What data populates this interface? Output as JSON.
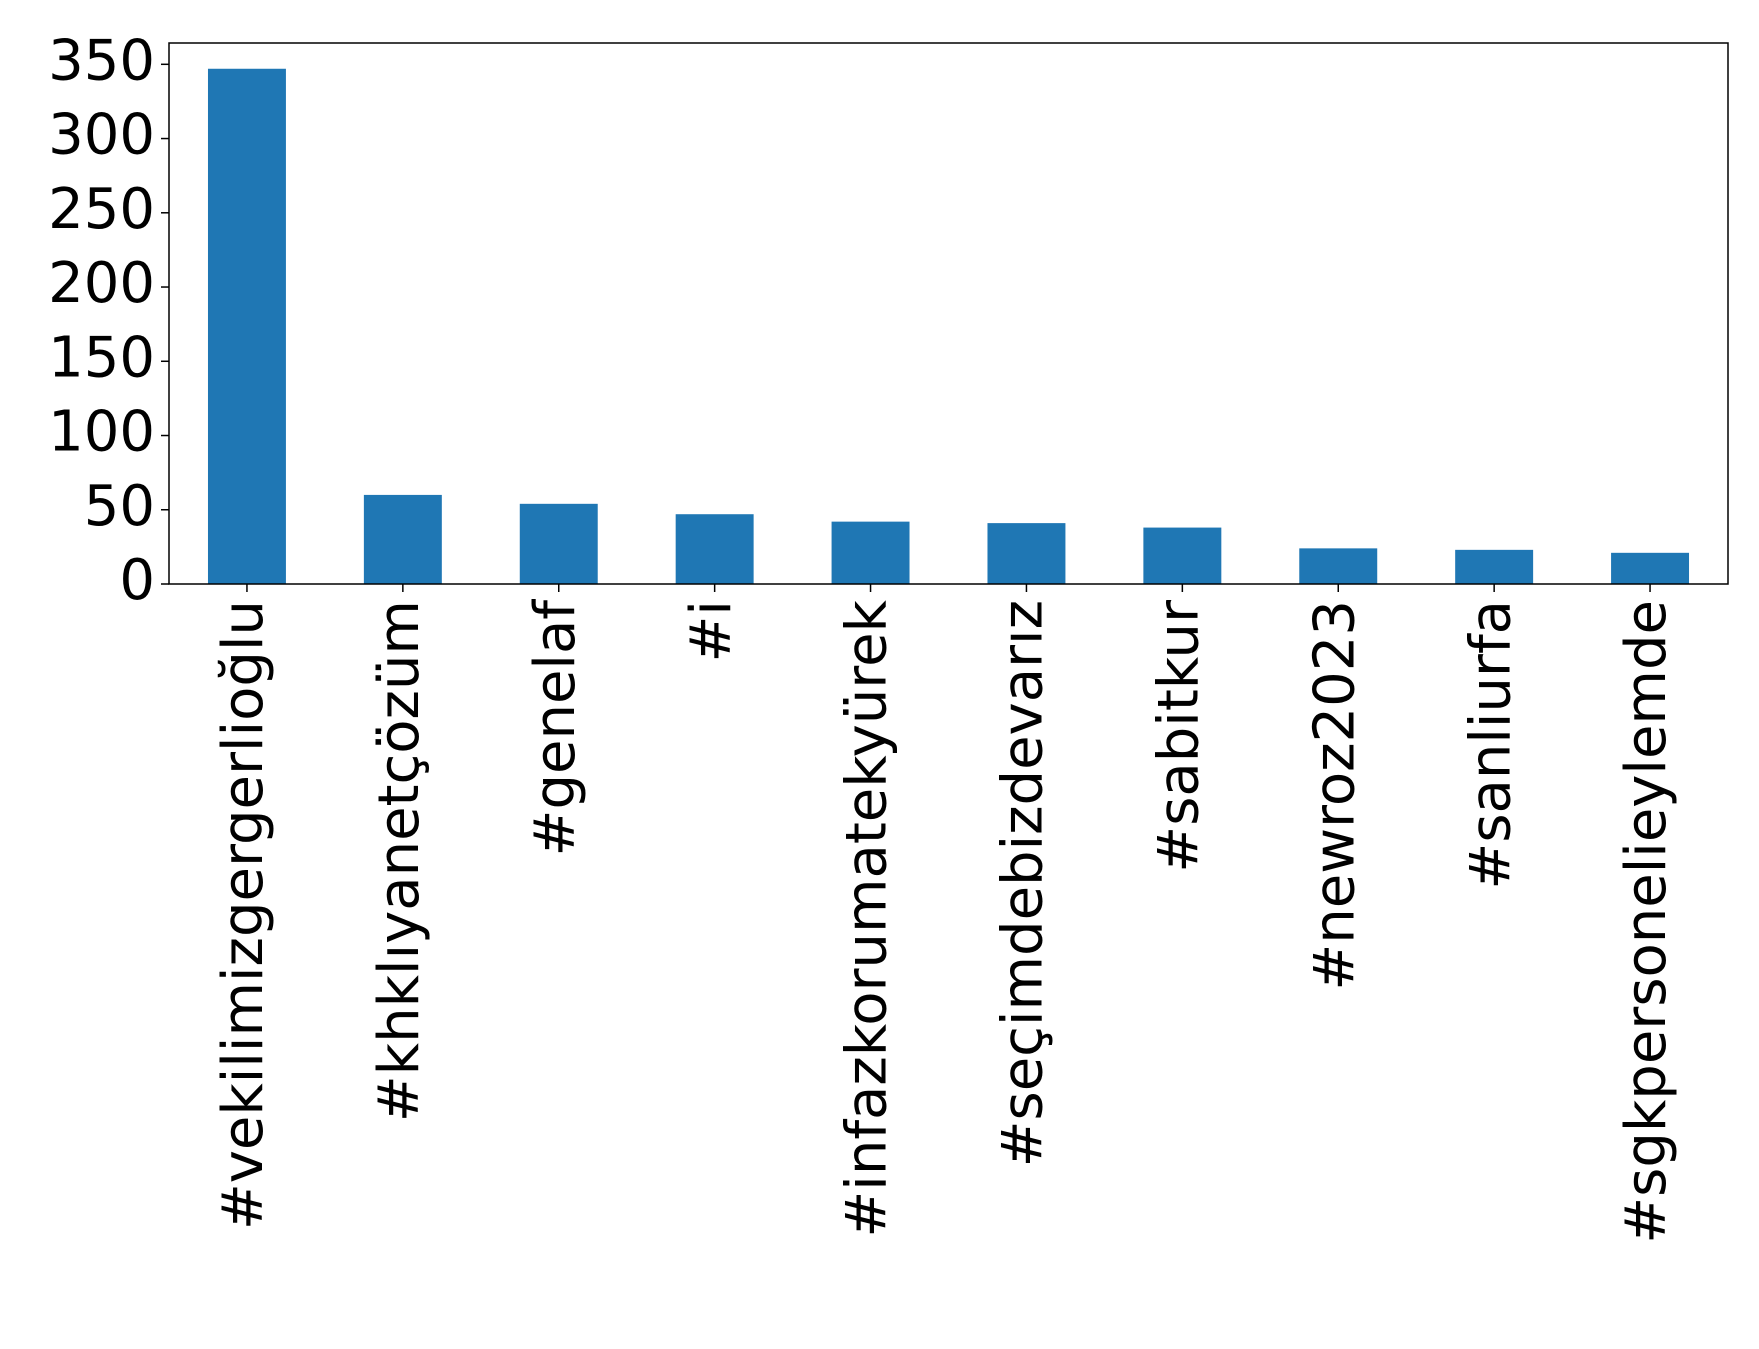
{
  "chart_data": {
    "type": "bar",
    "categories": [
      "#vekilimizgergerlioğlu",
      "#khklıyanetçözüm",
      "#genelaf",
      "#i",
      "#infazkorumatekyürek",
      "#seçimdebizdevarız",
      "#sabitkur",
      "#newroz2023",
      "#sanliurfa",
      "#sgkpersonelieylemde"
    ],
    "values": [
      347,
      60,
      54,
      47,
      42,
      41,
      38,
      24,
      23,
      21
    ],
    "color": "#1f77b4",
    "ylim": [
      0,
      364.35
    ],
    "yticks": [
      0,
      50,
      100,
      150,
      200,
      250,
      300,
      350
    ],
    "grid": false
  }
}
